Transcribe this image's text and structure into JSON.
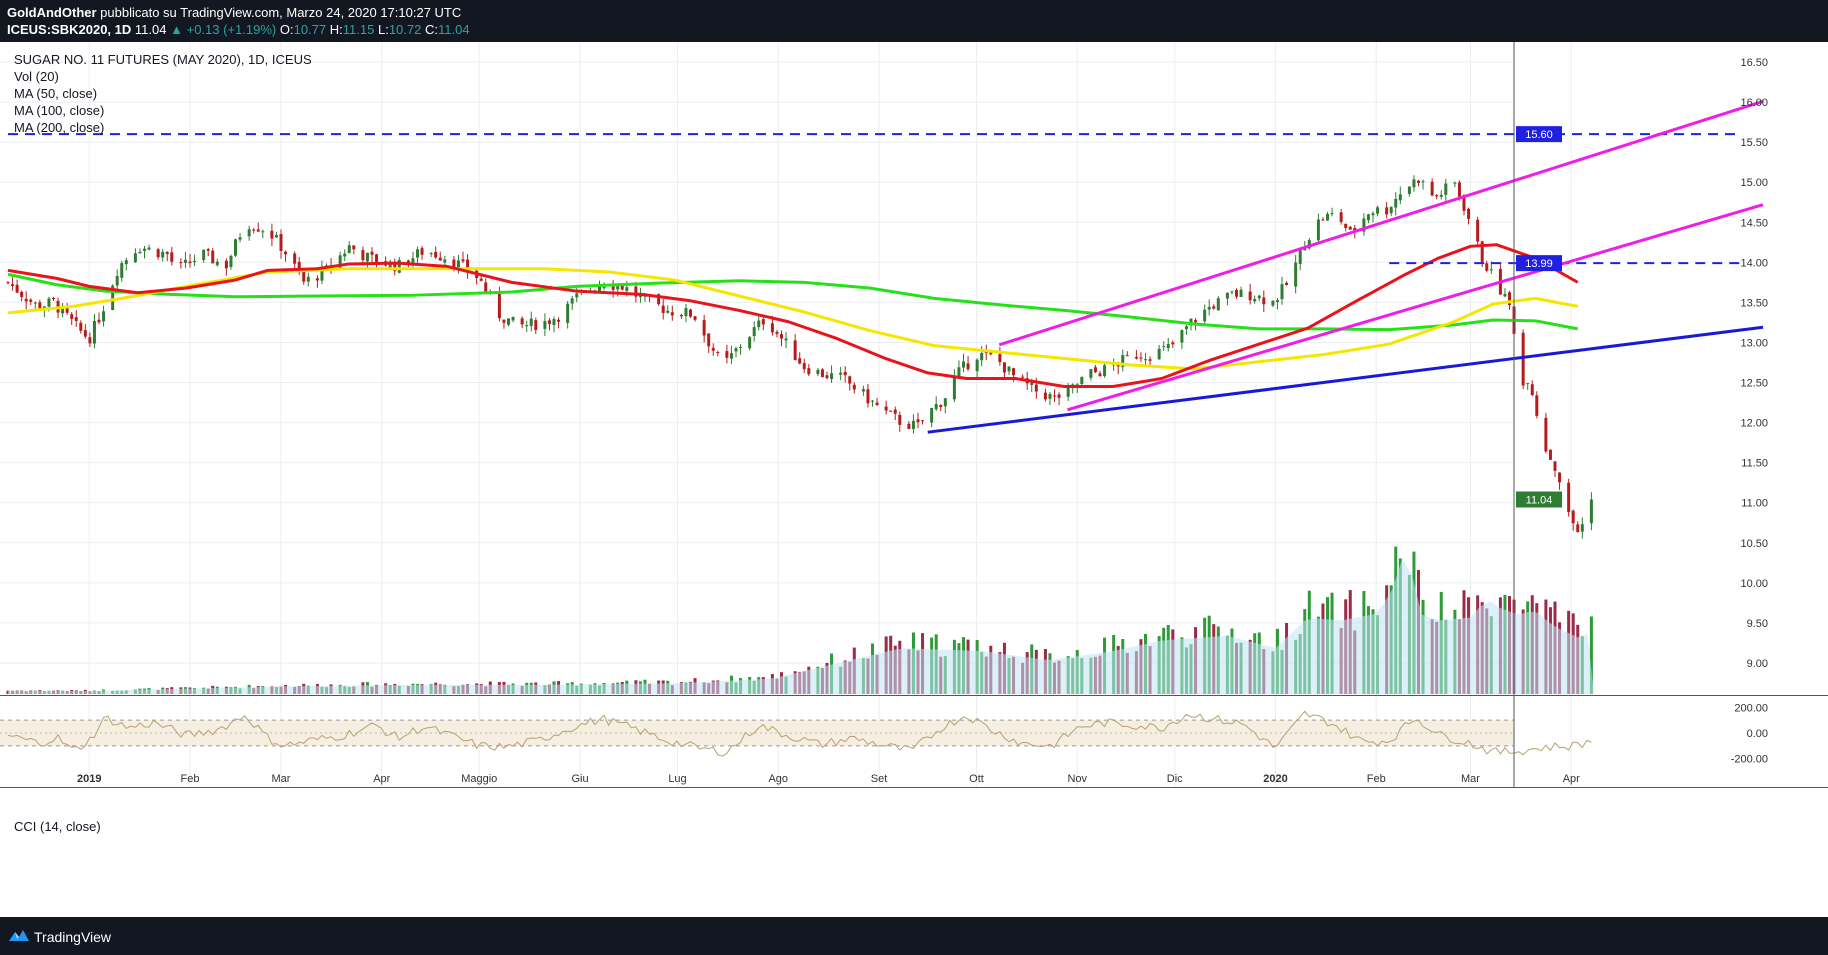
{
  "header": {
    "author": "GoldAndOther",
    "published": "pubblicato su TradingView.com, Marzo 24, 2020 17:10:27 UTC",
    "symbol": "ICEUS:SBK2020, 1D",
    "last": "11.04",
    "change": "+0.13 (+1.19%)",
    "o_label": "O:",
    "o": "10.77",
    "h_label": "H:",
    "h": "11.15",
    "l_label": "L:",
    "l": "10.72",
    "c_label": "C:",
    "c": "11.04"
  },
  "legend": {
    "title": "SUGAR NO. 11 FUTURES (MAY 2020), 1D, ICEUS",
    "vol": "Vol (20)",
    "ma50": "MA (50, close)",
    "ma100": "MA (100, close)",
    "ma200": "MA (200, close)",
    "cci": "CCI (14, close)"
  },
  "footer": {
    "brand": "TradingView"
  },
  "colors": {
    "up": "#2e7d32",
    "down": "#b71c1c",
    "ma50": "#e8141c",
    "ma100": "#f5e600",
    "ma200": "#26e01a",
    "trend_blue": "#1a1ad6",
    "channel_magenta": "#ee1ee8",
    "level_dash": "#2020e0",
    "cci_line": "#b8a070",
    "cci_band": "#f6efe1"
  },
  "chart_data": {
    "type": "candlestick",
    "price_axis": {
      "min": 8.6,
      "max": 16.75,
      "ticks": [
        "16.50",
        "16.00",
        "15.50",
        "15.00",
        "14.50",
        "14.00",
        "13.50",
        "13.00",
        "12.50",
        "12.00",
        "11.50",
        "11.00",
        "10.50",
        "10.00",
        "9.50",
        "9.00"
      ]
    },
    "price_labels": {
      "level_high": "15.60",
      "level_mid": "13.99",
      "last": "11.04"
    },
    "cci_axis": {
      "ticks": [
        "200.00",
        "0.00",
        "-200.00"
      ]
    },
    "x_labels": [
      "2019",
      "Feb",
      "Mar",
      "Apr",
      "Maggio",
      "Giu",
      "Lug",
      "Ago",
      "Set",
      "Ott",
      "Nov",
      "Dic",
      "2020",
      "Feb",
      "Mar",
      "Apr"
    ],
    "bold_x_labels": [
      "2019",
      "2020"
    ],
    "x_label_days": [
      0,
      31,
      59,
      90,
      120,
      151,
      181,
      212,
      243,
      273,
      304,
      334,
      365,
      396,
      425,
      456
    ],
    "horizontal_levels": [
      {
        "price": 15.6,
        "from_day": -25,
        "to_day": 508
      },
      {
        "price": 13.99,
        "from_day": 400,
        "to_day": 508
      }
    ],
    "trendlines": [
      {
        "name": "support",
        "start": {
          "day": 258,
          "price": 11.88
        },
        "end": {
          "day": 515,
          "price": 13.19
        }
      },
      {
        "name": "channel-upper",
        "start": {
          "day": 280,
          "price": 12.97
        },
        "end": {
          "day": 515,
          "price": 16.01
        }
      },
      {
        "name": "channel-lower",
        "start": {
          "day": 301,
          "price": 12.16
        },
        "end": {
          "day": 515,
          "price": 14.72
        }
      }
    ],
    "ohlc_key_points": [
      [
        -25,
        13.75
      ],
      [
        -16,
        13.45
      ],
      [
        -11,
        13.5
      ],
      [
        -3,
        13.15
      ],
      [
        0,
        13.05
      ],
      [
        4,
        13.4
      ],
      [
        9,
        13.95
      ],
      [
        15,
        14.2
      ],
      [
        24,
        14.1
      ],
      [
        27,
        13.9
      ],
      [
        35,
        14.1
      ],
      [
        42,
        13.95
      ],
      [
        48,
        14.5
      ],
      [
        55,
        14.4
      ],
      [
        60,
        14.15
      ],
      [
        66,
        13.75
      ],
      [
        73,
        13.9
      ],
      [
        80,
        14.2
      ],
      [
        86,
        14.05
      ],
      [
        95,
        13.95
      ],
      [
        103,
        14.15
      ],
      [
        111,
        14.05
      ],
      [
        120,
        13.8
      ],
      [
        126,
        13.35
      ],
      [
        132,
        13.2
      ],
      [
        140,
        13.25
      ],
      [
        145,
        13.35
      ],
      [
        151,
        13.6
      ],
      [
        158,
        13.75
      ],
      [
        164,
        13.7
      ],
      [
        170,
        13.55
      ],
      [
        178,
        13.4
      ],
      [
        186,
        13.35
      ],
      [
        190,
        13.05
      ],
      [
        195,
        12.7
      ],
      [
        202,
        13.05
      ],
      [
        208,
        13.3
      ],
      [
        214,
        13.0
      ],
      [
        220,
        12.7
      ],
      [
        226,
        12.6
      ],
      [
        232,
        12.55
      ],
      [
        238,
        12.35
      ],
      [
        244,
        12.15
      ],
      [
        250,
        12.0
      ],
      [
        255,
        11.95
      ],
      [
        259,
        12.15
      ],
      [
        263,
        12.3
      ],
      [
        267,
        12.6
      ],
      [
        273,
        12.85
      ],
      [
        279,
        12.8
      ],
      [
        285,
        12.55
      ],
      [
        291,
        12.4
      ],
      [
        297,
        12.3
      ],
      [
        302,
        12.4
      ],
      [
        307,
        12.6
      ],
      [
        312,
        12.65
      ],
      [
        317,
        12.75
      ],
      [
        322,
        12.85
      ],
      [
        327,
        12.85
      ],
      [
        333,
        12.95
      ],
      [
        339,
        13.25
      ],
      [
        345,
        13.45
      ],
      [
        352,
        13.6
      ],
      [
        358,
        13.6
      ],
      [
        364,
        13.5
      ],
      [
        369,
        13.75
      ],
      [
        374,
        14.25
      ],
      [
        379,
        14.55
      ],
      [
        384,
        14.6
      ],
      [
        388,
        14.35
      ],
      [
        394,
        14.65
      ],
      [
        399,
        14.65
      ],
      [
        404,
        14.9
      ],
      [
        409,
        15.05
      ],
      [
        414,
        14.8
      ],
      [
        420,
        15.0
      ],
      [
        424,
        14.6
      ],
      [
        428,
        14.1
      ],
      [
        432,
        13.8
      ],
      [
        435,
        13.6
      ],
      [
        437,
        13.45
      ],
      [
        439,
        13.05
      ],
      [
        441,
        12.45
      ],
      [
        443,
        12.6
      ],
      [
        446,
        12.0
      ],
      [
        448,
        11.7
      ],
      [
        452,
        11.35
      ],
      [
        455,
        10.85
      ],
      [
        458,
        10.65
      ],
      [
        461,
        10.8
      ],
      [
        463,
        11.04
      ]
    ],
    "moving_averages": {
      "ma50": [
        [
          -25,
          13.9
        ],
        [
          -10,
          13.8
        ],
        [
          0,
          13.7
        ],
        [
          15,
          13.62
        ],
        [
          30,
          13.68
        ],
        [
          45,
          13.78
        ],
        [
          55,
          13.9
        ],
        [
          70,
          13.92
        ],
        [
          80,
          13.98
        ],
        [
          95,
          13.99
        ],
        [
          110,
          13.95
        ],
        [
          130,
          13.75
        ],
        [
          150,
          13.64
        ],
        [
          170,
          13.6
        ],
        [
          185,
          13.52
        ],
        [
          200,
          13.4
        ],
        [
          215,
          13.26
        ],
        [
          230,
          13.05
        ],
        [
          245,
          12.8
        ],
        [
          258,
          12.62
        ],
        [
          270,
          12.55
        ],
        [
          285,
          12.55
        ],
        [
          300,
          12.45
        ],
        [
          315,
          12.45
        ],
        [
          330,
          12.55
        ],
        [
          345,
          12.78
        ],
        [
          360,
          12.98
        ],
        [
          375,
          13.18
        ],
        [
          390,
          13.52
        ],
        [
          405,
          13.85
        ],
        [
          415,
          14.05
        ],
        [
          425,
          14.2
        ],
        [
          433,
          14.22
        ],
        [
          445,
          14.05
        ],
        [
          458,
          13.75
        ]
      ],
      "ma100": [
        [
          -25,
          13.37
        ],
        [
          -5,
          13.45
        ],
        [
          10,
          13.55
        ],
        [
          30,
          13.7
        ],
        [
          55,
          13.88
        ],
        [
          80,
          13.92
        ],
        [
          110,
          13.92
        ],
        [
          140,
          13.92
        ],
        [
          160,
          13.88
        ],
        [
          180,
          13.78
        ],
        [
          200,
          13.58
        ],
        [
          220,
          13.38
        ],
        [
          240,
          13.15
        ],
        [
          260,
          12.96
        ],
        [
          280,
          12.88
        ],
        [
          300,
          12.8
        ],
        [
          320,
          12.72
        ],
        [
          340,
          12.67
        ],
        [
          360,
          12.76
        ],
        [
          380,
          12.85
        ],
        [
          400,
          12.98
        ],
        [
          420,
          13.26
        ],
        [
          432,
          13.48
        ],
        [
          445,
          13.55
        ],
        [
          458,
          13.45
        ]
      ],
      "ma200": [
        [
          -25,
          13.85
        ],
        [
          -10,
          13.72
        ],
        [
          5,
          13.64
        ],
        [
          25,
          13.6
        ],
        [
          45,
          13.57
        ],
        [
          70,
          13.58
        ],
        [
          100,
          13.59
        ],
        [
          130,
          13.63
        ],
        [
          150,
          13.7
        ],
        [
          175,
          13.74
        ],
        [
          200,
          13.77
        ],
        [
          220,
          13.75
        ],
        [
          240,
          13.68
        ],
        [
          260,
          13.55
        ],
        [
          280,
          13.47
        ],
        [
          300,
          13.4
        ],
        [
          320,
          13.32
        ],
        [
          340,
          13.23
        ],
        [
          360,
          13.17
        ],
        [
          380,
          13.17
        ],
        [
          400,
          13.16
        ],
        [
          420,
          13.22
        ],
        [
          432,
          13.28
        ],
        [
          445,
          13.27
        ],
        [
          458,
          13.17
        ]
      ]
    },
    "volume_key_points": [
      [
        -25,
        0.02
      ],
      [
        0,
        0.02
      ],
      [
        60,
        0.05
      ],
      [
        100,
        0.06
      ],
      [
        140,
        0.06
      ],
      [
        180,
        0.07
      ],
      [
        210,
        0.1
      ],
      [
        230,
        0.2
      ],
      [
        250,
        0.3
      ],
      [
        275,
        0.28
      ],
      [
        295,
        0.22
      ],
      [
        315,
        0.28
      ],
      [
        330,
        0.35
      ],
      [
        350,
        0.38
      ],
      [
        365,
        0.3
      ],
      [
        375,
        0.5
      ],
      [
        385,
        0.48
      ],
      [
        395,
        0.52
      ],
      [
        400,
        0.62
      ],
      [
        405,
        0.95
      ],
      [
        410,
        0.52
      ],
      [
        415,
        0.48
      ],
      [
        425,
        0.5
      ],
      [
        430,
        0.62
      ],
      [
        435,
        0.55
      ],
      [
        440,
        0.52
      ],
      [
        445,
        0.55
      ],
      [
        450,
        0.45
      ],
      [
        455,
        0.4
      ],
      [
        460,
        0.35
      ],
      [
        463,
        0.48
      ]
    ],
    "cci_key_points": [
      [
        -25,
        -20
      ],
      [
        -15,
        -80
      ],
      [
        -10,
        -30
      ],
      [
        -5,
        -140
      ],
      [
        0,
        -60
      ],
      [
        5,
        120
      ],
      [
        12,
        40
      ],
      [
        20,
        80
      ],
      [
        30,
        -20
      ],
      [
        40,
        30
      ],
      [
        48,
        140
      ],
      [
        55,
        -40
      ],
      [
        60,
        -100
      ],
      [
        68,
        -60
      ],
      [
        78,
        -20
      ],
      [
        88,
        60
      ],
      [
        95,
        -40
      ],
      [
        103,
        50
      ],
      [
        110,
        -10
      ],
      [
        120,
        -100
      ],
      [
        128,
        -110
      ],
      [
        138,
        -60
      ],
      [
        148,
        40
      ],
      [
        158,
        110
      ],
      [
        168,
        30
      ],
      [
        178,
        -60
      ],
      [
        188,
        -120
      ],
      [
        196,
        -150
      ],
      [
        206,
        60
      ],
      [
        215,
        -20
      ],
      [
        225,
        -90
      ],
      [
        235,
        -40
      ],
      [
        245,
        -100
      ],
      [
        253,
        -140
      ],
      [
        262,
        40
      ],
      [
        270,
        140
      ],
      [
        278,
        20
      ],
      [
        287,
        -80
      ],
      [
        296,
        -100
      ],
      [
        305,
        50
      ],
      [
        313,
        80
      ],
      [
        322,
        60
      ],
      [
        330,
        40
      ],
      [
        338,
        150
      ],
      [
        346,
        110
      ],
      [
        355,
        70
      ],
      [
        365,
        -120
      ],
      [
        374,
        150
      ],
      [
        382,
        80
      ],
      [
        392,
        -70
      ],
      [
        400,
        -60
      ],
      [
        408,
        120
      ],
      [
        416,
        -20
      ],
      [
        424,
        -70
      ],
      [
        432,
        -150
      ],
      [
        440,
        -140
      ],
      [
        448,
        -110
      ],
      [
        456,
        -100
      ],
      [
        463,
        -60
      ]
    ]
  }
}
